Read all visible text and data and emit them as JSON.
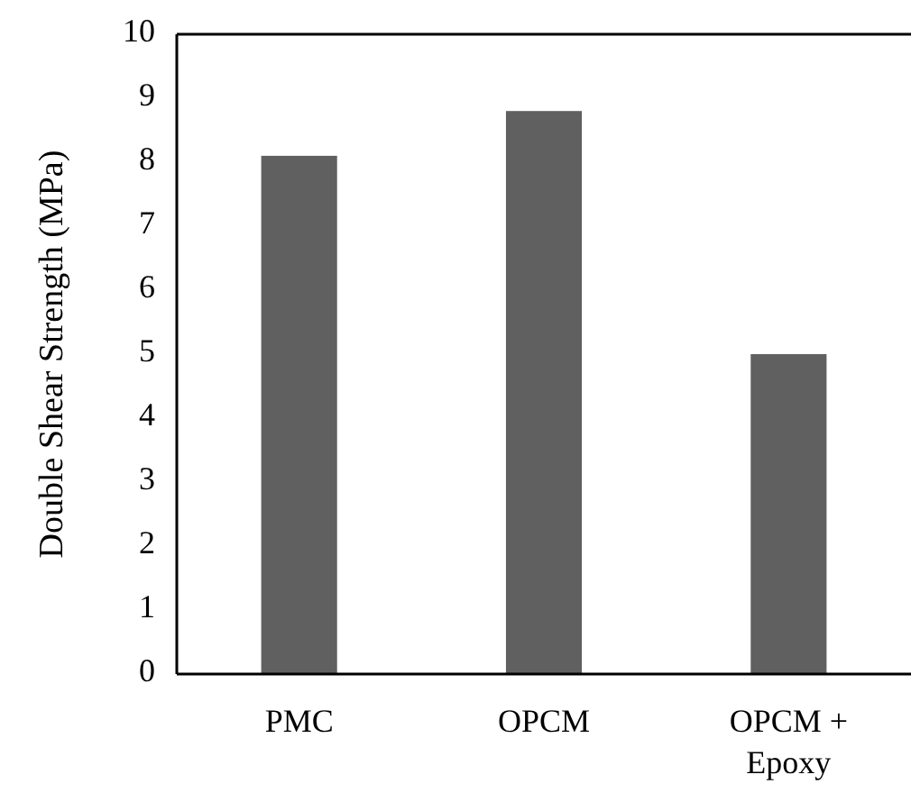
{
  "chart_data": {
    "type": "bar",
    "ylabel": "Double Shear Strength (MPa)",
    "categories": [
      "PMC",
      "OPCM",
      "OPCM + Epoxy"
    ],
    "values": [
      8.1,
      8.8,
      5.0
    ],
    "color": "#606060",
    "ylim": [
      0,
      10
    ],
    "yticks": [
      0,
      1,
      2,
      3,
      4,
      5,
      6,
      7,
      8,
      9,
      10
    ]
  }
}
